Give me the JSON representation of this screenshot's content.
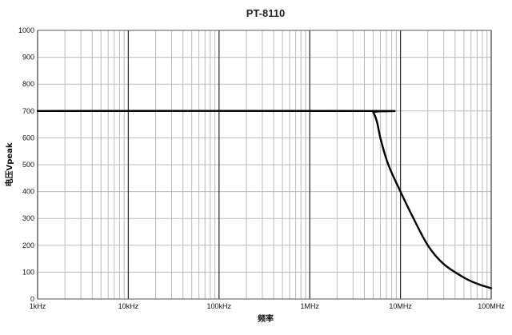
{
  "chart_data": {
    "type": "line",
    "title": "PT-8110",
    "xlabel": "频率",
    "ylabel": "电压Vpeak",
    "x_scale": "log",
    "x_unit": "Hz",
    "xlim": [
      1000,
      100000000
    ],
    "ylim": [
      0,
      1000
    ],
    "x_ticks": [
      {
        "value": 1000,
        "label": "1kHz"
      },
      {
        "value": 10000,
        "label": "10kHz"
      },
      {
        "value": 100000,
        "label": "100kHz"
      },
      {
        "value": 1000000,
        "label": "1MHz"
      },
      {
        "value": 10000000,
        "label": "10MHz"
      },
      {
        "value": 100000000,
        "label": "100MHz"
      }
    ],
    "y_ticks": [
      0,
      100,
      200,
      300,
      400,
      500,
      600,
      700,
      800,
      900,
      1000
    ],
    "grid": true,
    "series": [
      {
        "x": [
          1000,
          4500000,
          5000000,
          5500000,
          6000000,
          7000000,
          8000000,
          10000000,
          13000000,
          20000000,
          30000000,
          50000000,
          70000000,
          100000000
        ],
        "y": [
          700,
          700,
          695,
          660,
          600,
          520,
          470,
          400,
          320,
          200,
          130,
          80,
          57,
          40
        ]
      }
    ],
    "colors": {
      "line": "#000000",
      "major_grid": "#333333",
      "minor_grid": "#bbbbbb",
      "frame": "#555555"
    }
  }
}
